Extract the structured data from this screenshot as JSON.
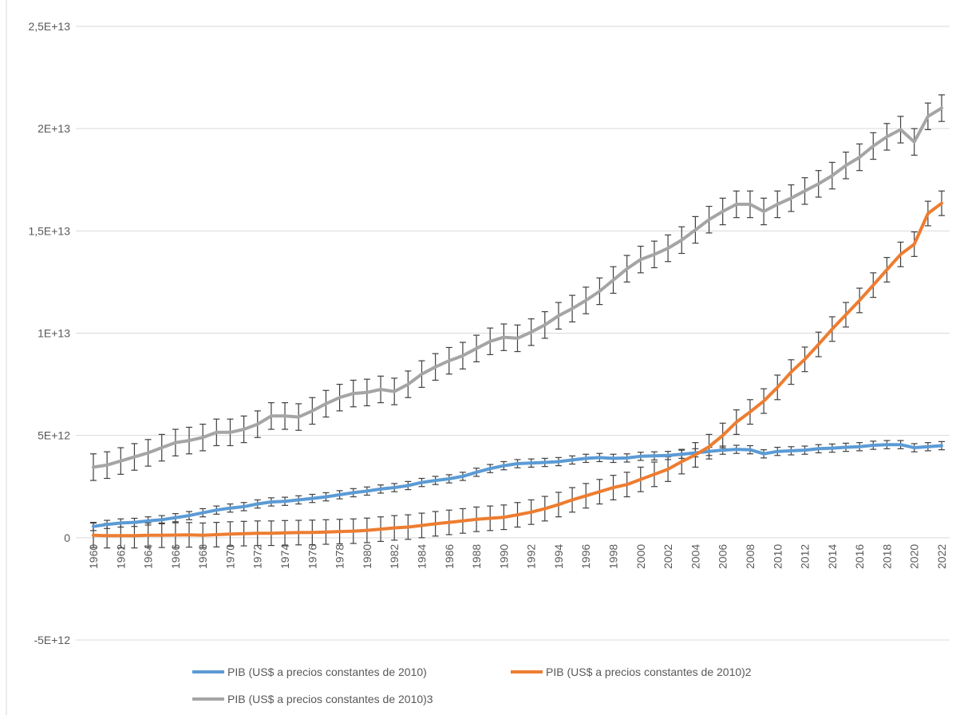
{
  "chart_data": {
    "type": "line",
    "title": "",
    "xlabel": "",
    "ylabel": "",
    "ylim": [
      -5000000000000.0,
      25000000000000.0
    ],
    "y_ticks": [
      {
        "value": 25000000000000.0,
        "label": "2,5E+13"
      },
      {
        "value": 20000000000000.0,
        "label": "2E+13"
      },
      {
        "value": 15000000000000.0,
        "label": "1,5E+13"
      },
      {
        "value": 10000000000000.0,
        "label": "1E+13"
      },
      {
        "value": 5000000000000.0,
        "label": "5E+12"
      },
      {
        "value": 0,
        "label": "0"
      },
      {
        "value": -5000000000000.0,
        "label": "-5E+12"
      }
    ],
    "x_start": 1960,
    "x_end": 2022,
    "x_tick_step": 2,
    "x_tick_labels": [
      "1960",
      "1962",
      "1964",
      "1966",
      "1968",
      "1970",
      "1972",
      "1974",
      "1976",
      "1978",
      "1980",
      "1982",
      "1984",
      "1986",
      "1988",
      "1990",
      "1992",
      "1994",
      "1996",
      "1998",
      "2000",
      "2002",
      "2004",
      "2006",
      "2008",
      "2010",
      "2012",
      "2014",
      "2016",
      "2018",
      "2020",
      "2022"
    ],
    "grid": true,
    "legend_position": "bottom",
    "error_bars": true,
    "series": [
      {
        "name": "PIB (US$ a precios constantes de 2010)",
        "color": "#5b9bd5",
        "error": 200000000000.0,
        "values": [
          550000000000.0,
          650000000000.0,
          720000000000.0,
          750000000000.0,
          820000000000.0,
          880000000000.0,
          980000000000.0,
          1080000000000.0,
          1220000000000.0,
          1350000000000.0,
          1450000000000.0,
          1520000000000.0,
          1650000000000.0,
          1750000000000.0,
          1780000000000.0,
          1850000000000.0,
          1920000000000.0,
          2000000000000.0,
          2100000000000.0,
          2200000000000.0,
          2280000000000.0,
          2380000000000.0,
          2450000000000.0,
          2550000000000.0,
          2700000000000.0,
          2800000000000.0,
          2880000000000.0,
          3000000000000.0,
          3200000000000.0,
          3380000000000.0,
          3520000000000.0,
          3620000000000.0,
          3650000000000.0,
          3680000000000.0,
          3720000000000.0,
          3800000000000.0,
          3880000000000.0,
          3920000000000.0,
          3880000000000.0,
          3900000000000.0,
          3980000000000.0,
          4000000000000.0,
          4020000000000.0,
          4080000000000.0,
          4150000000000.0,
          4220000000000.0,
          4280000000000.0,
          4320000000000.0,
          4300000000000.0,
          4100000000000.0,
          4220000000000.0,
          4250000000000.0,
          4280000000000.0,
          4350000000000.0,
          4380000000000.0,
          4420000000000.0,
          4450000000000.0,
          4520000000000.0,
          4550000000000.0,
          4550000000000.0,
          4400000000000.0,
          4450000000000.0,
          4500000000000.0
        ]
      },
      {
        "name": "PIB (US$ a precios constantes de 2010)2",
        "color": "#ed7d31",
        "error": 600000000000.0,
        "values": [
          120000000000.0,
          100000000000.0,
          100000000000.0,
          100000000000.0,
          120000000000.0,
          120000000000.0,
          130000000000.0,
          140000000000.0,
          120000000000.0,
          150000000000.0,
          180000000000.0,
          200000000000.0,
          220000000000.0,
          220000000000.0,
          240000000000.0,
          250000000000.0,
          260000000000.0,
          280000000000.0,
          300000000000.0,
          320000000000.0,
          360000000000.0,
          420000000000.0,
          480000000000.0,
          520000000000.0,
          600000000000.0,
          680000000000.0,
          750000000000.0,
          820000000000.0,
          900000000000.0,
          950000000000.0,
          1000000000000.0,
          1120000000000.0,
          1250000000000.0,
          1420000000000.0,
          1620000000000.0,
          1850000000000.0,
          2050000000000.0,
          2250000000000.0,
          2450000000000.0,
          2600000000000.0,
          2850000000000.0,
          3100000000000.0,
          3350000000000.0,
          3720000000000.0,
          4050000000000.0,
          4450000000000.0,
          5000000000000.0,
          5650000000000.0,
          6150000000000.0,
          6680000000000.0,
          7350000000000.0,
          8100000000000.0,
          8720000000000.0,
          9450000000000.0,
          10200000000000.0,
          10900000000000.0,
          11600000000000.0,
          12350000000000.0,
          13100000000000.0,
          13850000000000.0,
          14350000000000.0,
          15850000000000.0,
          16350000000000.0
        ]
      },
      {
        "name": "PIB (US$ a precios constantes de 2010)3",
        "color": "#a5a5a5",
        "error": 650000000000.0,
        "values": [
          3450000000000.0,
          3550000000000.0,
          3750000000000.0,
          3950000000000.0,
          4150000000000.0,
          4400000000000.0,
          4650000000000.0,
          4750000000000.0,
          4900000000000.0,
          5150000000000.0,
          5150000000000.0,
          5300000000000.0,
          5550000000000.0,
          5950000000000.0,
          5950000000000.0,
          5900000000000.0,
          6200000000000.0,
          6550000000000.0,
          6850000000000.0,
          7050000000000.0,
          7100000000000.0,
          7250000000000.0,
          7150000000000.0,
          7500000000000.0,
          8000000000000.0,
          8350000000000.0,
          8650000000000.0,
          8900000000000.0,
          9250000000000.0,
          9600000000000.0,
          9800000000000.0,
          9750000000000.0,
          10050000000000.0,
          10400000000000.0,
          10850000000000.0,
          11200000000000.0,
          11600000000000.0,
          12050000000000.0,
          12600000000000.0,
          13150000000000.0,
          13600000000000.0,
          13850000000000.0,
          14150000000000.0,
          14550000000000.0,
          15050000000000.0,
          15550000000000.0,
          15950000000000.0,
          16300000000000.0,
          16300000000000.0,
          15950000000000.0,
          16300000000000.0,
          16600000000000.0,
          16950000000000.0,
          17300000000000.0,
          17700000000000.0,
          18200000000000.0,
          18600000000000.0,
          19150000000000.0,
          19600000000000.0,
          19950000000000.0,
          19350000000000.0,
          20600000000000.0,
          21000000000000.0
        ]
      }
    ]
  }
}
